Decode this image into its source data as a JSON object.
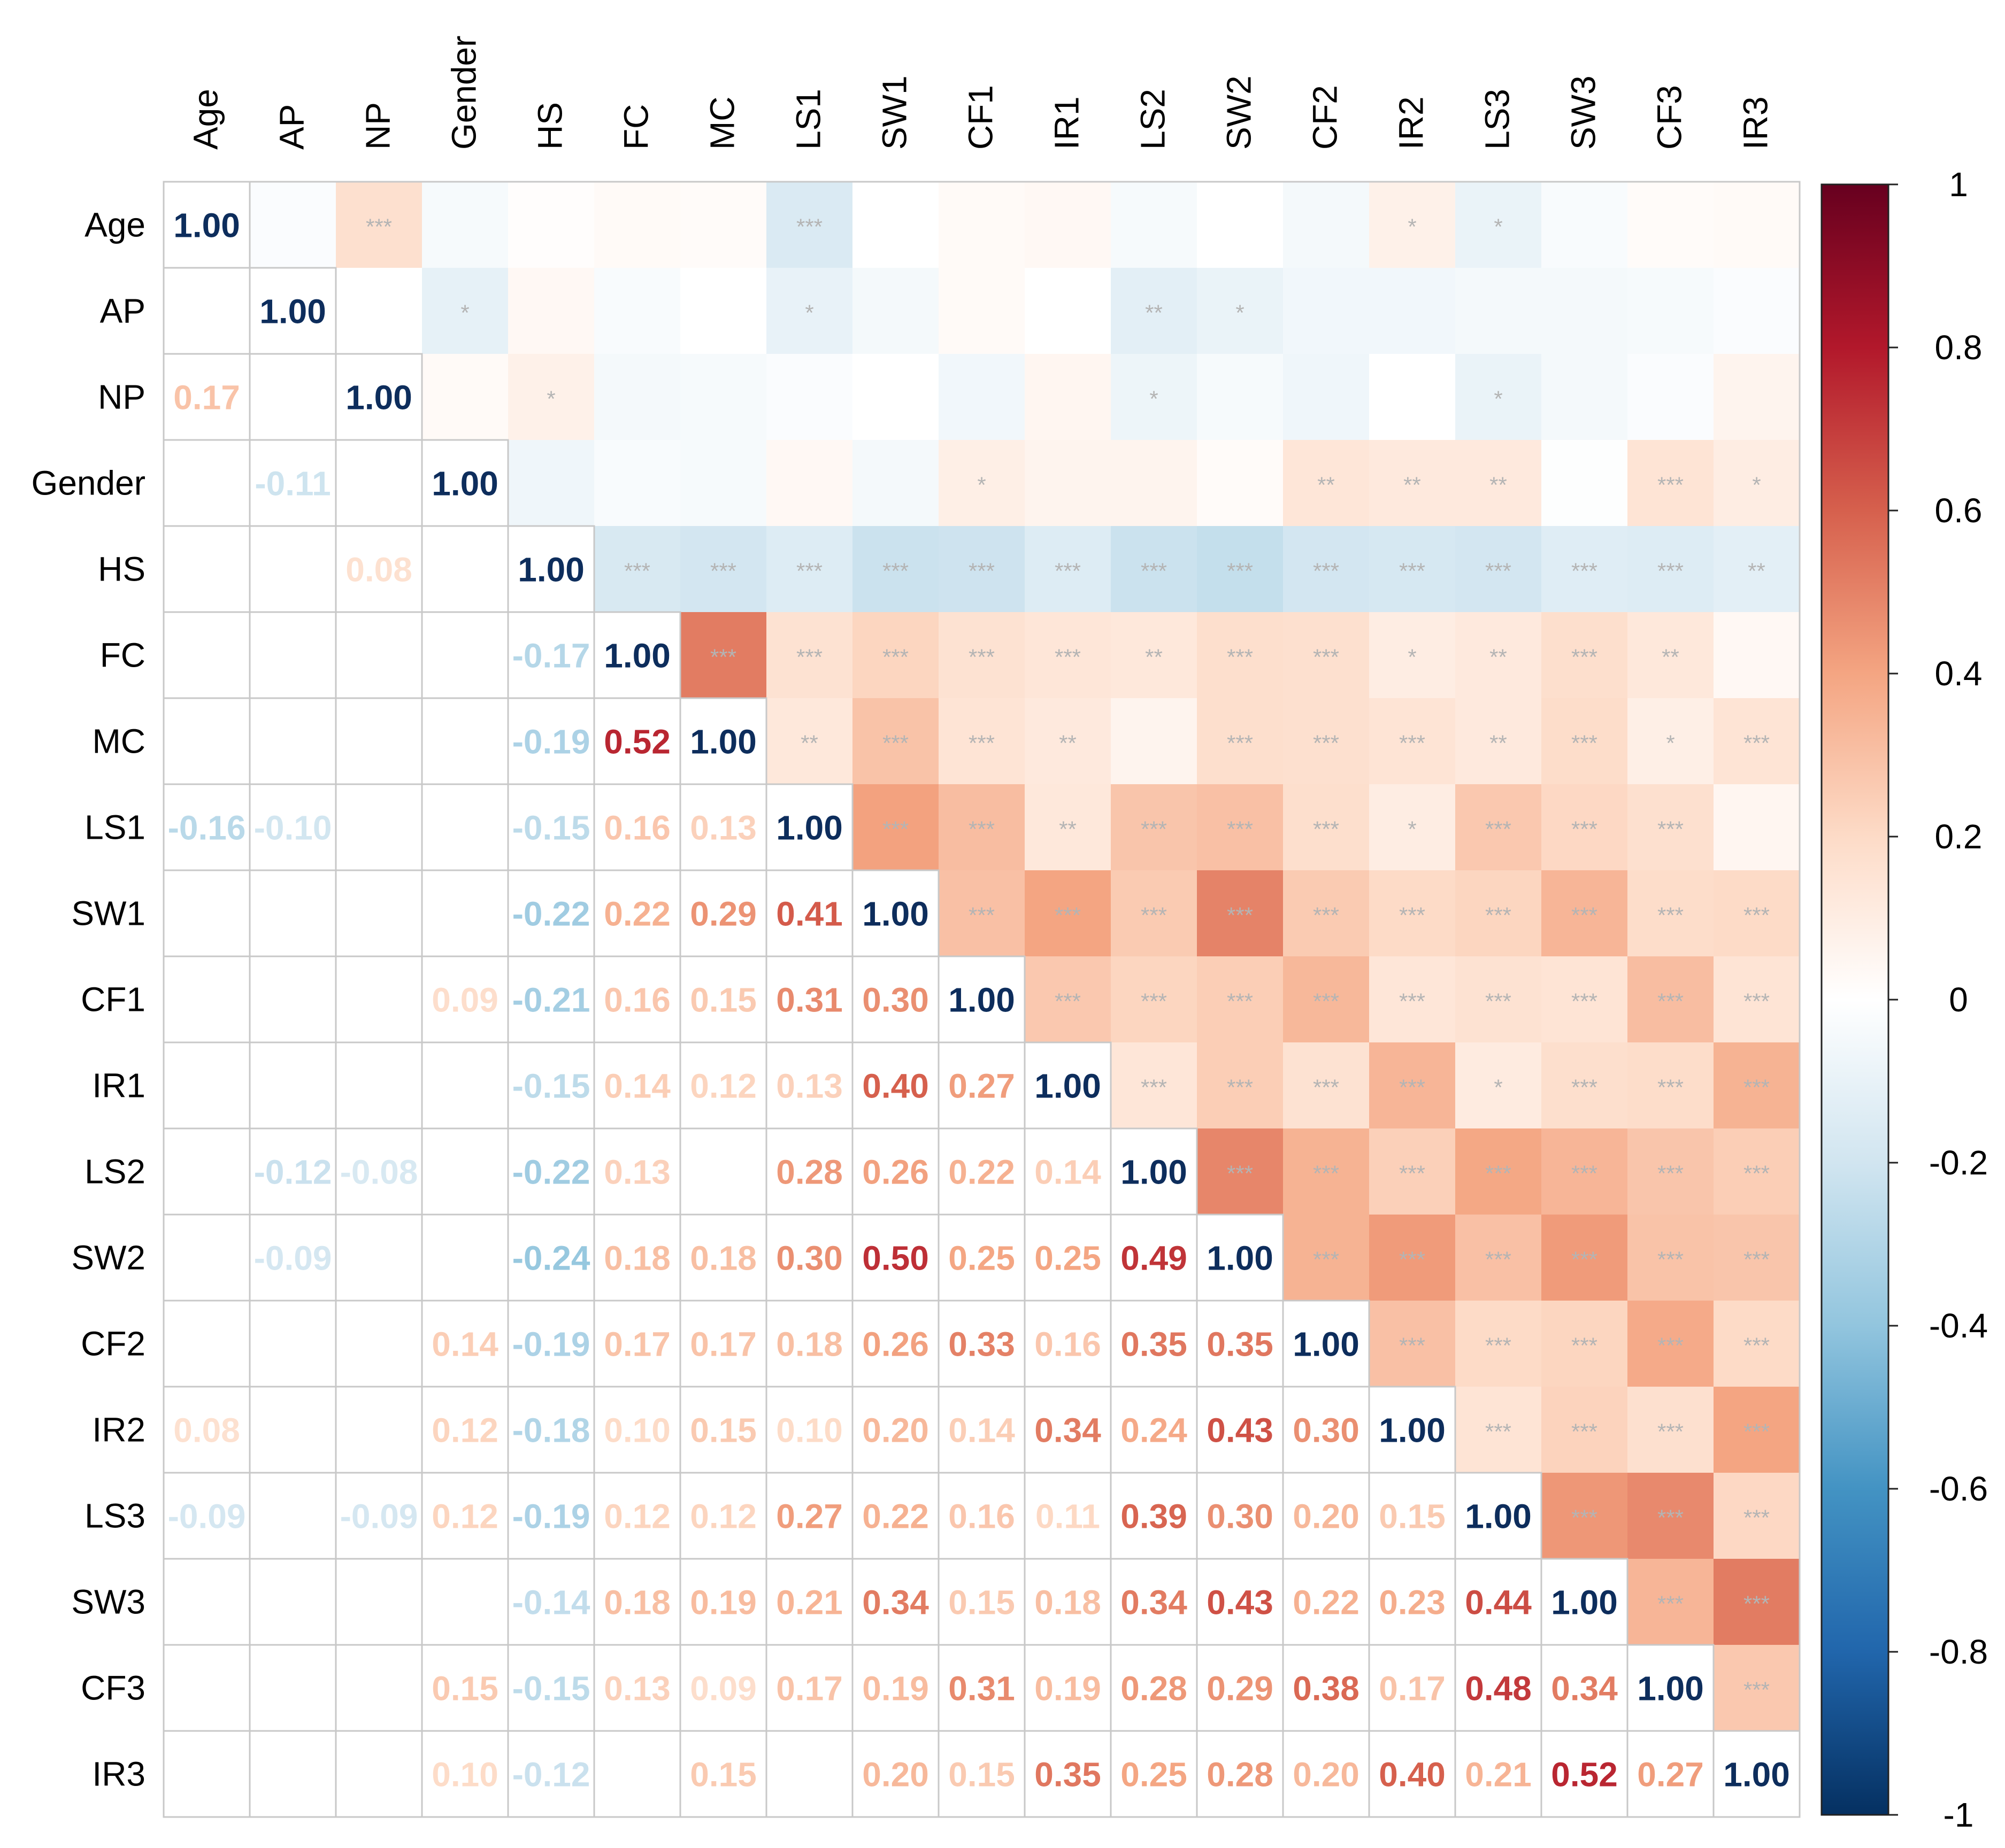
{
  "chart_data": {
    "type": "heatmap",
    "subtype": "correlation-matrix",
    "title": "",
    "variables": [
      "Age",
      "AP",
      "NP",
      "Gender",
      "HS",
      "FC",
      "MC",
      "LS1",
      "SW1",
      "CF1",
      "IR1",
      "LS2",
      "SW2",
      "CF2",
      "IR2",
      "LS3",
      "SW3",
      "CF3",
      "IR3"
    ],
    "lower_triangle": "correlation coefficient printed where significant",
    "upper_triangle": "significance stars",
    "correlations": [
      [
        1.0,
        null,
        null,
        null,
        null,
        null,
        null,
        null,
        null,
        null,
        null,
        null,
        null,
        null,
        null,
        null,
        null,
        null,
        null
      ],
      [
        null,
        1.0,
        null,
        null,
        null,
        null,
        null,
        null,
        null,
        null,
        null,
        null,
        null,
        null,
        null,
        null,
        null,
        null,
        null
      ],
      [
        0.17,
        null,
        1.0,
        null,
        null,
        null,
        null,
        null,
        null,
        null,
        null,
        null,
        null,
        null,
        null,
        null,
        null,
        null,
        null
      ],
      [
        null,
        -0.11,
        null,
        1.0,
        null,
        null,
        null,
        null,
        null,
        null,
        null,
        null,
        null,
        null,
        null,
        null,
        null,
        null,
        null
      ],
      [
        null,
        null,
        0.08,
        null,
        1.0,
        null,
        null,
        null,
        null,
        null,
        null,
        null,
        null,
        null,
        null,
        null,
        null,
        null,
        null
      ],
      [
        null,
        null,
        null,
        null,
        -0.17,
        1.0,
        null,
        null,
        null,
        null,
        null,
        null,
        null,
        null,
        null,
        null,
        null,
        null,
        null
      ],
      [
        null,
        null,
        null,
        null,
        -0.19,
        0.52,
        1.0,
        null,
        null,
        null,
        null,
        null,
        null,
        null,
        null,
        null,
        null,
        null,
        null
      ],
      [
        -0.16,
        -0.1,
        null,
        null,
        -0.15,
        0.16,
        0.13,
        1.0,
        null,
        null,
        null,
        null,
        null,
        null,
        null,
        null,
        null,
        null,
        null
      ],
      [
        null,
        null,
        null,
        null,
        -0.22,
        0.22,
        0.29,
        0.41,
        1.0,
        null,
        null,
        null,
        null,
        null,
        null,
        null,
        null,
        null,
        null
      ],
      [
        null,
        null,
        null,
        0.09,
        -0.21,
        0.16,
        0.15,
        0.31,
        0.3,
        1.0,
        null,
        null,
        null,
        null,
        null,
        null,
        null,
        null,
        null
      ],
      [
        null,
        null,
        null,
        null,
        -0.15,
        0.14,
        0.12,
        0.13,
        0.4,
        0.27,
        1.0,
        null,
        null,
        null,
        null,
        null,
        null,
        null,
        null
      ],
      [
        null,
        -0.12,
        -0.08,
        null,
        -0.22,
        0.13,
        null,
        0.28,
        0.26,
        0.22,
        0.14,
        1.0,
        null,
        null,
        null,
        null,
        null,
        null,
        null
      ],
      [
        null,
        -0.09,
        null,
        null,
        -0.24,
        0.18,
        0.18,
        0.3,
        0.5,
        0.25,
        0.25,
        0.49,
        1.0,
        null,
        null,
        null,
        null,
        null,
        null
      ],
      [
        null,
        null,
        null,
        0.14,
        -0.19,
        0.17,
        0.17,
        0.18,
        0.26,
        0.33,
        0.16,
        0.35,
        0.35,
        1.0,
        null,
        null,
        null,
        null,
        null
      ],
      [
        0.08,
        null,
        null,
        0.12,
        -0.18,
        0.1,
        0.15,
        0.1,
        0.2,
        0.14,
        0.34,
        0.24,
        0.43,
        0.3,
        1.0,
        null,
        null,
        null,
        null
      ],
      [
        -0.09,
        null,
        -0.09,
        0.12,
        -0.19,
        0.12,
        0.12,
        0.27,
        0.22,
        0.16,
        0.11,
        0.39,
        0.3,
        0.2,
        0.15,
        1.0,
        null,
        null,
        null
      ],
      [
        null,
        null,
        null,
        null,
        -0.14,
        0.18,
        0.19,
        0.21,
        0.34,
        0.15,
        0.18,
        0.34,
        0.43,
        0.22,
        0.23,
        0.44,
        1.0,
        null,
        null
      ],
      [
        null,
        null,
        null,
        0.15,
        -0.15,
        0.13,
        0.09,
        0.17,
        0.19,
        0.31,
        0.19,
        0.28,
        0.29,
        0.38,
        0.17,
        0.48,
        0.34,
        1.0,
        null
      ],
      [
        null,
        null,
        null,
        0.1,
        -0.12,
        null,
        0.15,
        null,
        0.2,
        0.15,
        0.35,
        0.25,
        0.28,
        0.2,
        0.4,
        0.21,
        0.52,
        0.27,
        1.0
      ]
    ],
    "upper_fill_values": [
      [
        null,
        -0.02,
        0.17,
        -0.04,
        0.01,
        0.03,
        0.02,
        -0.16,
        0.0,
        0.03,
        0.04,
        -0.04,
        0.0,
        -0.05,
        0.08,
        -0.09,
        -0.03,
        0.02,
        0.03
      ],
      [
        null,
        null,
        0.0,
        -0.11,
        0.04,
        -0.03,
        0.0,
        -0.1,
        -0.05,
        0.03,
        0.0,
        -0.12,
        -0.09,
        -0.06,
        -0.06,
        -0.05,
        -0.05,
        -0.04,
        -0.02
      ],
      [
        null,
        null,
        null,
        0.03,
        0.08,
        -0.05,
        -0.04,
        -0.02,
        0.0,
        -0.06,
        0.05,
        -0.08,
        -0.04,
        -0.07,
        0.0,
        -0.09,
        -0.05,
        -0.02,
        0.06
      ],
      [
        null,
        null,
        null,
        null,
        -0.07,
        -0.03,
        -0.04,
        0.04,
        -0.05,
        0.09,
        0.06,
        0.06,
        0.02,
        0.14,
        0.12,
        0.12,
        -0.01,
        0.15,
        0.1
      ],
      [
        null,
        null,
        null,
        null,
        null,
        -0.17,
        -0.19,
        -0.15,
        -0.22,
        -0.21,
        -0.15,
        -0.22,
        -0.24,
        -0.19,
        -0.18,
        -0.19,
        -0.14,
        -0.15,
        -0.12
      ],
      [
        null,
        null,
        null,
        null,
        null,
        null,
        0.52,
        0.16,
        0.22,
        0.16,
        0.14,
        0.13,
        0.18,
        0.17,
        0.1,
        0.12,
        0.18,
        0.13,
        0.04
      ],
      [
        null,
        null,
        null,
        null,
        null,
        null,
        null,
        0.13,
        0.29,
        0.15,
        0.12,
        0.06,
        0.18,
        0.17,
        0.15,
        0.12,
        0.19,
        0.09,
        0.15
      ],
      [
        null,
        null,
        null,
        null,
        null,
        null,
        null,
        null,
        0.41,
        0.31,
        0.13,
        0.28,
        0.3,
        0.18,
        0.1,
        0.27,
        0.21,
        0.17,
        0.05
      ],
      [
        null,
        null,
        null,
        null,
        null,
        null,
        null,
        null,
        null,
        0.3,
        0.4,
        0.26,
        0.5,
        0.26,
        0.2,
        0.22,
        0.34,
        0.19,
        0.2
      ],
      [
        null,
        null,
        null,
        null,
        null,
        null,
        null,
        null,
        null,
        null,
        0.27,
        0.22,
        0.25,
        0.33,
        0.14,
        0.16,
        0.15,
        0.31,
        0.15
      ],
      [
        null,
        null,
        null,
        null,
        null,
        null,
        null,
        null,
        null,
        null,
        null,
        0.14,
        0.25,
        0.16,
        0.34,
        0.11,
        0.18,
        0.19,
        0.35
      ],
      [
        null,
        null,
        null,
        null,
        null,
        null,
        null,
        null,
        null,
        null,
        null,
        null,
        0.49,
        0.35,
        0.24,
        0.39,
        0.34,
        0.28,
        0.25
      ],
      [
        null,
        null,
        null,
        null,
        null,
        null,
        null,
        null,
        null,
        null,
        null,
        null,
        null,
        0.35,
        0.43,
        0.3,
        0.43,
        0.29,
        0.28
      ],
      [
        null,
        null,
        null,
        null,
        null,
        null,
        null,
        null,
        null,
        null,
        null,
        null,
        null,
        null,
        0.3,
        0.2,
        0.22,
        0.38,
        0.2
      ],
      [
        null,
        null,
        null,
        null,
        null,
        null,
        null,
        null,
        null,
        null,
        null,
        null,
        null,
        null,
        null,
        0.15,
        0.23,
        0.17,
        0.4
      ],
      [
        null,
        null,
        null,
        null,
        null,
        null,
        null,
        null,
        null,
        null,
        null,
        null,
        null,
        null,
        null,
        null,
        0.44,
        0.48,
        0.21
      ],
      [
        null,
        null,
        null,
        null,
        null,
        null,
        null,
        null,
        null,
        null,
        null,
        null,
        null,
        null,
        null,
        null,
        null,
        0.34,
        0.52
      ],
      [
        null,
        null,
        null,
        null,
        null,
        null,
        null,
        null,
        null,
        null,
        null,
        null,
        null,
        null,
        null,
        null,
        null,
        null,
        0.27
      ],
      [
        null,
        null,
        null,
        null,
        null,
        null,
        null,
        null,
        null,
        null,
        null,
        null,
        null,
        null,
        null,
        null,
        null,
        null,
        null
      ]
    ],
    "significance_stars": [
      [
        "",
        "",
        "***",
        "",
        "",
        "",
        "",
        "***",
        "",
        "",
        "",
        "",
        "",
        "",
        "*",
        "*",
        "",
        "",
        ""
      ],
      [
        "",
        "",
        "",
        "*",
        "",
        "",
        "",
        "*",
        "",
        "",
        "",
        "**",
        "*",
        "",
        "",
        "",
        "",
        "",
        ""
      ],
      [
        "",
        "",
        "",
        "",
        "*",
        "",
        "",
        "",
        "",
        "",
        "",
        "*",
        "",
        "",
        "",
        "*",
        "",
        "",
        ""
      ],
      [
        "",
        "",
        "",
        "",
        "",
        "",
        "",
        "",
        "",
        "*",
        "",
        "",
        "",
        "**",
        "**",
        "**",
        "",
        "***",
        "*"
      ],
      [
        "",
        "",
        "",
        "",
        "",
        "***",
        "***",
        "***",
        "***",
        "***",
        "***",
        "***",
        "***",
        "***",
        "***",
        "***",
        "***",
        "***",
        "**"
      ],
      [
        "",
        "",
        "",
        "",
        "",
        "",
        "***",
        "***",
        "***",
        "***",
        "***",
        "**",
        "***",
        "***",
        "*",
        "**",
        "***",
        "**",
        ""
      ],
      [
        "",
        "",
        "",
        "",
        "",
        "",
        "",
        "**",
        "***",
        "***",
        "**",
        "",
        "***",
        "***",
        "***",
        "**",
        "***",
        "*",
        "***"
      ],
      [
        "",
        "",
        "",
        "",
        "",
        "",
        "",
        "",
        "***",
        "***",
        "**",
        "***",
        "***",
        "***",
        "*",
        "***",
        "***",
        "***",
        ""
      ],
      [
        "",
        "",
        "",
        "",
        "",
        "",
        "",
        "",
        "",
        "***",
        "***",
        "***",
        "***",
        "***",
        "***",
        "***",
        "***",
        "***",
        "***"
      ],
      [
        "",
        "",
        "",
        "",
        "",
        "",
        "",
        "",
        "",
        "",
        "***",
        "***",
        "***",
        "***",
        "***",
        "***",
        "***",
        "***",
        "***"
      ],
      [
        "",
        "",
        "",
        "",
        "",
        "",
        "",
        "",
        "",
        "",
        "",
        "***",
        "***",
        "***",
        "***",
        "*",
        "***",
        "***",
        "***"
      ],
      [
        "",
        "",
        "",
        "",
        "",
        "",
        "",
        "",
        "",
        "",
        "",
        "",
        "***",
        "***",
        "***",
        "***",
        "***",
        "***",
        "***"
      ],
      [
        "",
        "",
        "",
        "",
        "",
        "",
        "",
        "",
        "",
        "",
        "",
        "",
        "",
        "***",
        "***",
        "***",
        "***",
        "***",
        "***"
      ],
      [
        "",
        "",
        "",
        "",
        "",
        "",
        "",
        "",
        "",
        "",
        "",
        "",
        "",
        "",
        "***",
        "***",
        "***",
        "***",
        "***"
      ],
      [
        "",
        "",
        "",
        "",
        "",
        "",
        "",
        "",
        "",
        "",
        "",
        "",
        "",
        "",
        "",
        "***",
        "***",
        "***",
        "***"
      ],
      [
        "",
        "",
        "",
        "",
        "",
        "",
        "",
        "",
        "",
        "",
        "",
        "",
        "",
        "",
        "",
        "",
        "***",
        "***",
        "***"
      ],
      [
        "",
        "",
        "",
        "",
        "",
        "",
        "",
        "",
        "",
        "",
        "",
        "",
        "",
        "",
        "",
        "",
        "",
        "***",
        "***"
      ],
      [
        "",
        "",
        "",
        "",
        "",
        "",
        "",
        "",
        "",
        "",
        "",
        "",
        "",
        "",
        "",
        "",
        "",
        "",
        "***"
      ],
      [
        "",
        "",
        "",
        "",
        "",
        "",
        "",
        "",
        "",
        "",
        "",
        "",
        "",
        "",
        "",
        "",
        "",
        "",
        ""
      ]
    ],
    "colorbar": {
      "range": [
        -1,
        1
      ],
      "ticks": [
        "1",
        "0.8",
        "0.6",
        "0.4",
        "0.2",
        "0",
        "-0.2",
        "-0.4",
        "-0.6",
        "-0.8",
        "-1"
      ],
      "colormap": [
        "#67001f",
        "#b2182b",
        "#d6604d",
        "#f4a582",
        "#fddbc7",
        "#ffffff",
        "#d1e5f0",
        "#92c5de",
        "#4393c3",
        "#2166ac",
        "#053061"
      ]
    },
    "colors": {
      "grid": "#c8c8c8",
      "star": "#b4b4b4",
      "diagonal_text": "#0d2d5c"
    }
  }
}
